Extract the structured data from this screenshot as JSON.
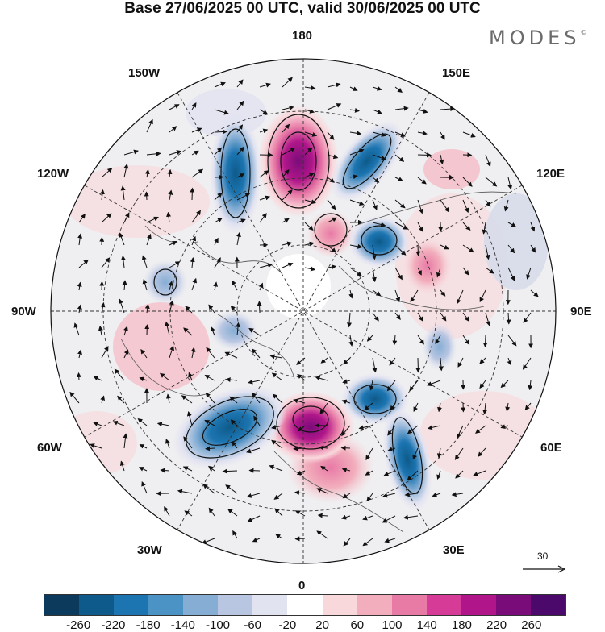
{
  "title": "Base 27/06/2025 00 UTC, valid 30/06/2025 00 UTC",
  "brand": "MODES",
  "brand_mark": "©",
  "longitude_labels": {
    "top": "180",
    "bottom": "0",
    "left": "90W",
    "right": "90E",
    "upper_left": "150W",
    "upper_right": "150E",
    "mid_upper_left": "120W",
    "mid_upper_right": "120E",
    "mid_lower_left": "60W",
    "mid_lower_right": "60E",
    "lower_left": "30W",
    "lower_right": "30E"
  },
  "reference_vector_label": "30",
  "colorbar": {
    "ticks": [
      "-260",
      "-220",
      "-180",
      "-140",
      "-100",
      "-60",
      "-20",
      "20",
      "60",
      "100",
      "140",
      "180",
      "220",
      "260"
    ],
    "colors": [
      "#0b3a5c",
      "#0e5a8a",
      "#1c75b1",
      "#4a93c4",
      "#86aed4",
      "#b8c6e2",
      "#e2e3f1",
      "#ffffff",
      "#f9d8dc",
      "#f2aebc",
      "#e87aa6",
      "#d63b97",
      "#b0168a",
      "#7a0c79",
      "#4b0a6b"
    ]
  },
  "map": {
    "projection": "north-polar-stereographic",
    "anomalies": [
      {
        "name": "ridge-north-pacific",
        "sign": "positive",
        "level": "strong",
        "color": "#b0168a"
      },
      {
        "name": "ridge-europe",
        "sign": "positive",
        "level": "strong",
        "color": "#b0168a"
      },
      {
        "name": "trough-north-atlantic",
        "sign": "negative",
        "level": "strong",
        "color": "#1c75b1"
      },
      {
        "name": "trough-bering",
        "sign": "negative",
        "level": "moderate",
        "color": "#1c75b1"
      },
      {
        "name": "trough-east-siberia",
        "sign": "negative",
        "level": "moderate",
        "color": "#4a93c4"
      },
      {
        "name": "trough-scandinavia",
        "sign": "negative",
        "level": "moderate",
        "color": "#1c75b1"
      },
      {
        "name": "trough-eastern-europe",
        "sign": "negative",
        "level": "moderate",
        "color": "#1c75b1"
      }
    ]
  }
}
